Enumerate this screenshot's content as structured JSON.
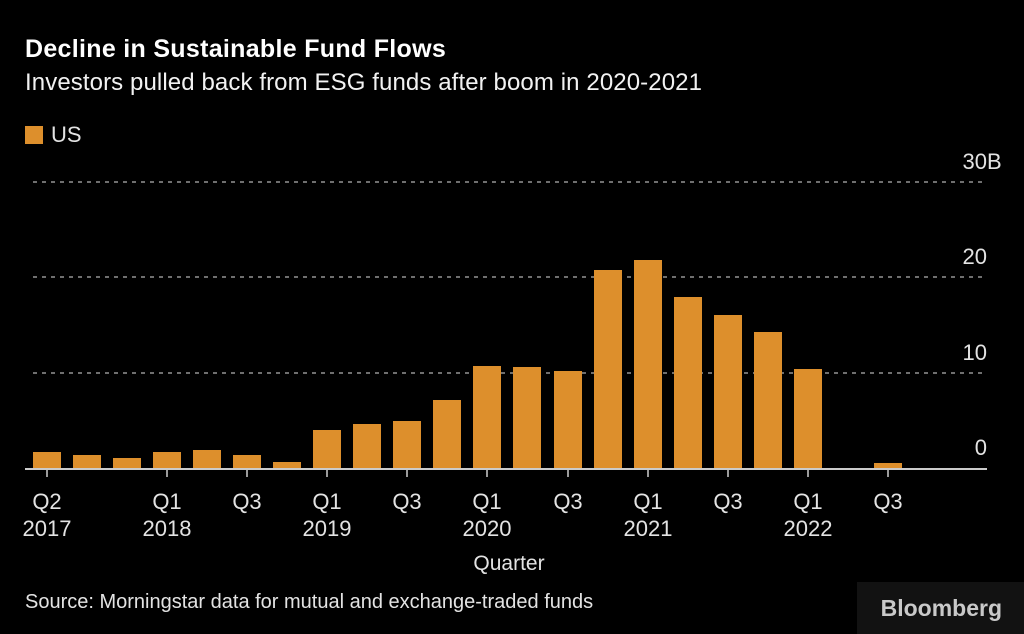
{
  "header": {
    "title": "Decline in Sustainable Fund Flows",
    "subtitle": "Investors pulled back from ESG funds after boom in 2020-2021"
  },
  "legend": {
    "items": [
      {
        "label": "US",
        "color": "#dd8f2c"
      }
    ]
  },
  "chart_data": {
    "type": "bar",
    "title": "Decline in Sustainable Fund Flows",
    "subtitle": "Investors pulled back from ESG funds after boom in 2020-2021",
    "unit": "billions USD",
    "categories": [
      "Q2 2017",
      "Q3 2017",
      "Q4 2017",
      "Q1 2018",
      "Q2 2018",
      "Q3 2018",
      "Q4 2018",
      "Q1 2019",
      "Q2 2019",
      "Q3 2019",
      "Q4 2019",
      "Q1 2020",
      "Q2 2020",
      "Q3 2020",
      "Q4 2020",
      "Q1 2021",
      "Q2 2021",
      "Q3 2021",
      "Q4 2021",
      "Q1 2022",
      "Q2 2022",
      "Q3 2022"
    ],
    "series": [
      {
        "name": "US",
        "values": [
          1.7,
          1.4,
          1.0,
          1.7,
          1.9,
          1.4,
          0.6,
          4.0,
          4.6,
          4.9,
          7.1,
          10.7,
          10.6,
          10.2,
          20.8,
          21.8,
          17.9,
          16.1,
          14.3,
          10.4,
          0.0,
          0.5
        ]
      }
    ],
    "xlabel": "Quarter",
    "ylabel": "",
    "ylim": [
      0,
      30
    ],
    "y_ticks": [
      {
        "value": 0,
        "label": "0",
        "suffix": ""
      },
      {
        "value": 10,
        "label": "10",
        "suffix": ""
      },
      {
        "value": 20,
        "label": "20",
        "suffix": ""
      },
      {
        "value": 30,
        "label": "30",
        "suffix": "B"
      }
    ],
    "x_ticks": [
      {
        "index": 0,
        "quarter": "Q2",
        "year": "2017"
      },
      {
        "index": 3,
        "quarter": "Q1",
        "year": "2018"
      },
      {
        "index": 5,
        "quarter": "Q3",
        "year": ""
      },
      {
        "index": 7,
        "quarter": "Q1",
        "year": "2019"
      },
      {
        "index": 9,
        "quarter": "Q3",
        "year": ""
      },
      {
        "index": 11,
        "quarter": "Q1",
        "year": "2020"
      },
      {
        "index": 13,
        "quarter": "Q3",
        "year": ""
      },
      {
        "index": 15,
        "quarter": "Q1",
        "year": "2021"
      },
      {
        "index": 17,
        "quarter": "Q3",
        "year": ""
      },
      {
        "index": 19,
        "quarter": "Q1",
        "year": "2022"
      },
      {
        "index": 21,
        "quarter": "Q3",
        "year": ""
      }
    ],
    "grid": "horizontal-dotted",
    "legend_position": "top-left"
  },
  "footer": {
    "source": "Source: Morningstar data for mutual and exchange-traded funds",
    "brand": "Bloomberg"
  },
  "colors": {
    "background": "#000000",
    "bar": "#dd8f2c",
    "grid": "#6f6f6f",
    "axis_line": "#cbcbcb",
    "tick": "#9b9b9b",
    "title_text": "#ffffff",
    "subtitle_text": "#f2f2f2",
    "axis_text": "#e3e3e3",
    "source_text": "#e3e3e3",
    "logo_text": "#c9c9c9",
    "logo_bg": "#121212"
  }
}
